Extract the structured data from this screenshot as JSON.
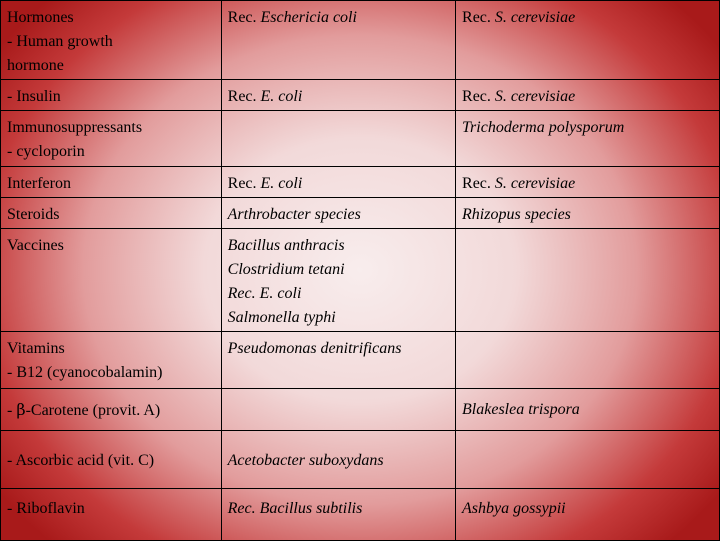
{
  "rows": [
    {
      "c1": [
        "Hormones",
        "- Human growth",
        "hormone"
      ],
      "c2_prefix": "Rec. ",
      "c2_italic": "Eschericia coli",
      "c3_prefix": "Rec. ",
      "c3_italic": "S. cerevisiae"
    },
    {
      "c1": [
        "- Insulin"
      ],
      "c2_prefix": "Rec. ",
      "c2_italic": "E. coli",
      "c3_prefix": "Rec. ",
      "c3_italic": "S. cerevisiae"
    },
    {
      "c1": [
        "Immunosuppressants",
        "- cycloporin"
      ],
      "c2_prefix": "",
      "c2_italic": "",
      "c3_prefix": "",
      "c3_italic": "Trichoderma polysporum"
    },
    {
      "c1": [
        "Interferon"
      ],
      "c2_prefix": "Rec. ",
      "c2_italic": "E. coli",
      "c3_prefix": "Rec. ",
      "c3_italic": "S. cerevisiae"
    },
    {
      "c1": [
        "Steroids"
      ],
      "c2_prefix": "",
      "c2_italic": "Arthrobacter species",
      "c3_prefix": "",
      "c3_italic": "Rhizopus species"
    },
    {
      "c1": [
        "Vaccines"
      ],
      "c2_lines": [
        "Bacillus anthracis",
        "Clostridium tetani",
        "Rec. E. coli",
        "Salmonella typhi"
      ]
    },
    {
      "c1": [
        "Vitamins",
        "- B12 (cyanocobalamin)"
      ],
      "c2_prefix": "",
      "c2_italic": "Pseudomonas denitrificans",
      "c3_prefix": "",
      "c3_italic": ""
    },
    {
      "c1_prefix": "- ",
      "c1_symbol": "β",
      "c1_suffix": "-Carotene (provit. A)",
      "c2_prefix": "",
      "c2_italic": "",
      "c3_prefix": "",
      "c3_italic": "Blakeslea trispora"
    },
    {
      "c1": [
        "- Ascorbic acid (vit. C)"
      ],
      "c2_prefix": "",
      "c2_italic": "Acetobacter suboxydans",
      "c3_prefix": "",
      "c3_italic": ""
    },
    {
      "c1": [
        "- Riboflavin"
      ],
      "c2_prefix": "Rec. ",
      "c2_italic": "Bacillus subtilis",
      "c3_prefix": "",
      "c3_italic": "Ashbya gossypii"
    }
  ]
}
